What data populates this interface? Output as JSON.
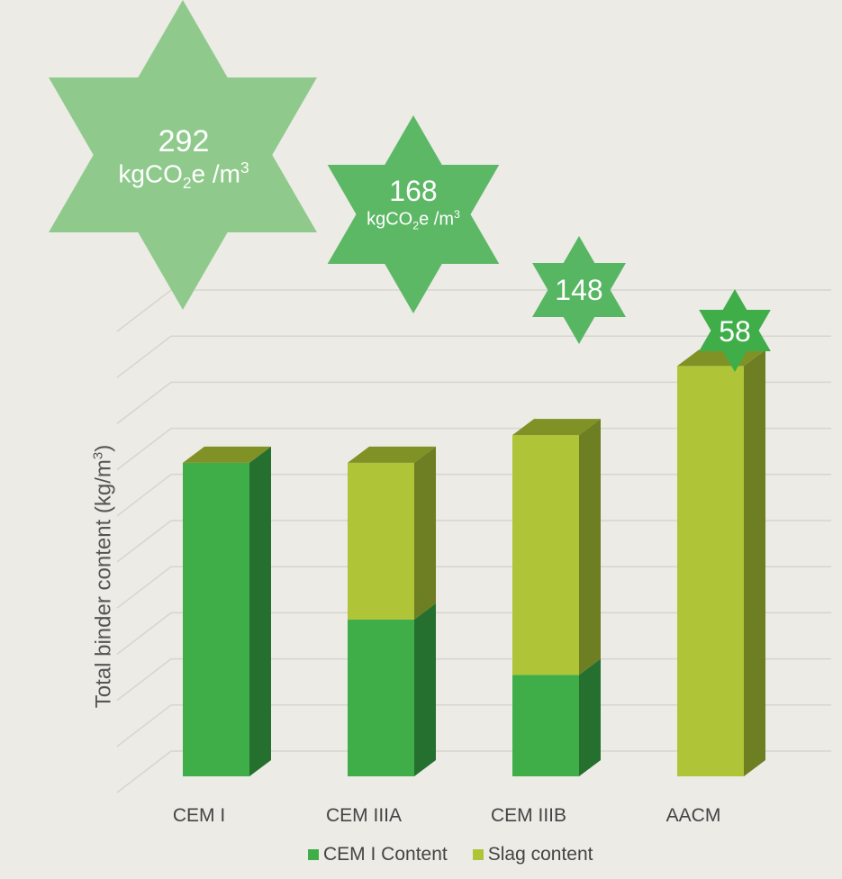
{
  "chart_data": {
    "type": "bar",
    "stacked": true,
    "style": "3d",
    "title": "",
    "xlabel": "",
    "ylabel_parts": [
      "Total binder content (kg/m",
      "3",
      ")"
    ],
    "categories": [
      "CEM I",
      "CEM IIIA",
      "CEM IIIB",
      "AACM"
    ],
    "series": [
      {
        "name": "CEM I Content",
        "values": [
          340,
          170,
          110,
          0
        ],
        "color": "#3fae49",
        "side_color": "#256f2f"
      },
      {
        "name": "Slag content",
        "values": [
          0,
          170,
          260,
          445
        ],
        "color": "#afc436",
        "side_color": "#6e7e22"
      }
    ],
    "top_color": "#809126",
    "ylim": [
      0,
      500
    ],
    "grid": true,
    "legend_position": "bottom",
    "annotations": [
      {
        "category": "CEM I",
        "value": "292",
        "unit": [
          "kgCO",
          "2",
          "e /m",
          "3"
        ],
        "color": "#8fca8c"
      },
      {
        "category": "CEM IIIA",
        "value": "168",
        "unit": [
          "kgCO",
          "2",
          "e /m",
          "3"
        ],
        "color": "#5db866"
      },
      {
        "category": "CEM IIIB",
        "value": "148",
        "unit": null,
        "color": "#57b662"
      },
      {
        "category": "AACM",
        "value": "58",
        "unit": null,
        "color": "#3fae49"
      }
    ]
  }
}
